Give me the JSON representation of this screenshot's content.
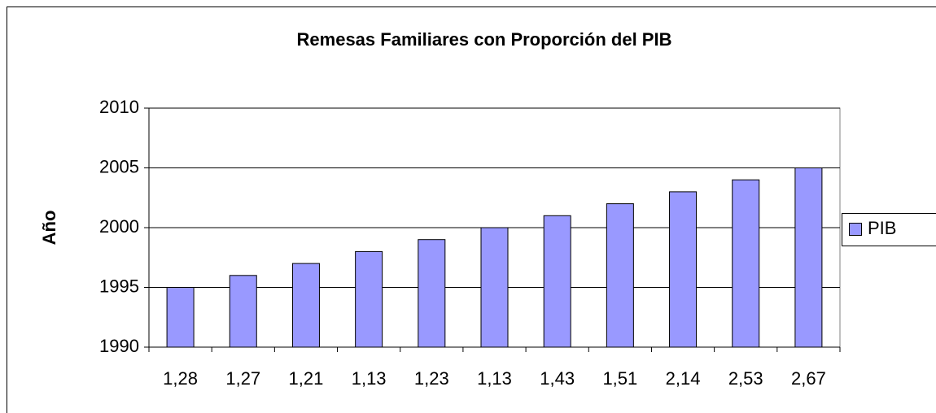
{
  "chart_data": {
    "type": "bar",
    "title": "Remesas Familiares con Proporción del PIB",
    "y_label": "Año",
    "categories": [
      "1,28",
      "1,27",
      "1,21",
      "1,13",
      "1,23",
      "1,13",
      "1,43",
      "1,51",
      "2,14",
      "2,53",
      "2,67"
    ],
    "series": [
      {
        "name": "PIB",
        "color": "#9999ff",
        "values": [
          1995,
          1996,
          1997,
          1998,
          1999,
          2000,
          2001,
          2002,
          2003,
          2004,
          2005
        ]
      }
    ],
    "ylim": [
      1990,
      2010
    ],
    "yticks": [
      1990,
      1995,
      2000,
      2005,
      2010
    ],
    "grid": true,
    "legend": "right"
  }
}
